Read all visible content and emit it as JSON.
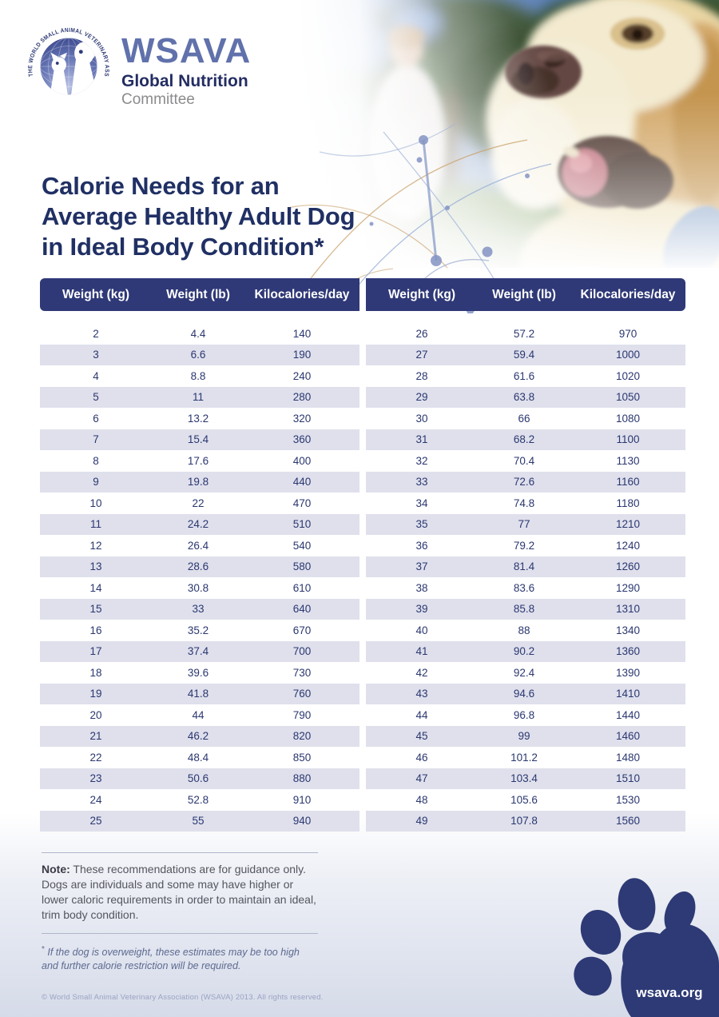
{
  "brand": {
    "acronym": "WSAVA",
    "line1": "Global Nutrition",
    "line2": "Committee"
  },
  "logo": {
    "ring_text": "THE WORLD SMALL ANIMAL VETERINARY ASSOCIATION"
  },
  "title": {
    "lines": [
      "Calorie Needs for an",
      "Average Healthy Adult Dog",
      "in Ideal Body Condition*"
    ]
  },
  "tables": {
    "headers": [
      "Weight (kg)",
      "Weight (lb)",
      "Kilocalories/day"
    ],
    "left_rows": [
      [
        "2",
        "4.4",
        "140"
      ],
      [
        "3",
        "6.6",
        "190"
      ],
      [
        "4",
        "8.8",
        "240"
      ],
      [
        "5",
        "11",
        "280"
      ],
      [
        "6",
        "13.2",
        "320"
      ],
      [
        "7",
        "15.4",
        "360"
      ],
      [
        "8",
        "17.6",
        "400"
      ],
      [
        "9",
        "19.8",
        "440"
      ],
      [
        "10",
        "22",
        "470"
      ],
      [
        "11",
        "24.2",
        "510"
      ],
      [
        "12",
        "26.4",
        "540"
      ],
      [
        "13",
        "28.6",
        "580"
      ],
      [
        "14",
        "30.8",
        "610"
      ],
      [
        "15",
        "33",
        "640"
      ],
      [
        "16",
        "35.2",
        "670"
      ],
      [
        "17",
        "37.4",
        "700"
      ],
      [
        "18",
        "39.6",
        "730"
      ],
      [
        "19",
        "41.8",
        "760"
      ],
      [
        "20",
        "44",
        "790"
      ],
      [
        "21",
        "46.2",
        "820"
      ],
      [
        "22",
        "48.4",
        "850"
      ],
      [
        "23",
        "50.6",
        "880"
      ],
      [
        "24",
        "52.8",
        "910"
      ],
      [
        "25",
        "55",
        "940"
      ]
    ],
    "right_rows": [
      [
        "26",
        "57.2",
        "970"
      ],
      [
        "27",
        "59.4",
        "1000"
      ],
      [
        "28",
        "61.6",
        "1020"
      ],
      [
        "29",
        "63.8",
        "1050"
      ],
      [
        "30",
        "66",
        "1080"
      ],
      [
        "31",
        "68.2",
        "1100"
      ],
      [
        "32",
        "70.4",
        "1130"
      ],
      [
        "33",
        "72.6",
        "1160"
      ],
      [
        "34",
        "74.8",
        "1180"
      ],
      [
        "35",
        "77",
        "1210"
      ],
      [
        "36",
        "79.2",
        "1240"
      ],
      [
        "37",
        "81.4",
        "1260"
      ],
      [
        "38",
        "83.6",
        "1290"
      ],
      [
        "39",
        "85.8",
        "1310"
      ],
      [
        "40",
        "88",
        "1340"
      ],
      [
        "41",
        "90.2",
        "1360"
      ],
      [
        "42",
        "92.4",
        "1390"
      ],
      [
        "43",
        "94.6",
        "1410"
      ],
      [
        "44",
        "96.8",
        "1440"
      ],
      [
        "45",
        "99",
        "1460"
      ],
      [
        "46",
        "101.2",
        "1480"
      ],
      [
        "47",
        "103.4",
        "1510"
      ],
      [
        "48",
        "105.6",
        "1530"
      ],
      [
        "49",
        "107.8",
        "1560"
      ]
    ]
  },
  "notes": {
    "note_label": "Note:",
    "note_body": "These recommendations are for guidance only. Dogs are individuals and some may have higher or lower caloric requirements in order to maintain an ideal, trim body condition."
  },
  "footnote": {
    "marker": "*",
    "text": "If the dog is overweight, these estimates may be too high and further calorie restriction will be required."
  },
  "footer": {
    "copyright": "© World Small Animal Veterinary Association (WSAVA) 2013. All rights reserved."
  },
  "paw": {
    "website": "wsava.org"
  },
  "colors": {
    "navy": "#2e3a75",
    "header_bg": "#2f3977",
    "row_alt": "#dfe0ec",
    "title_navy": "#203064",
    "cell_text": "#2b3770"
  }
}
